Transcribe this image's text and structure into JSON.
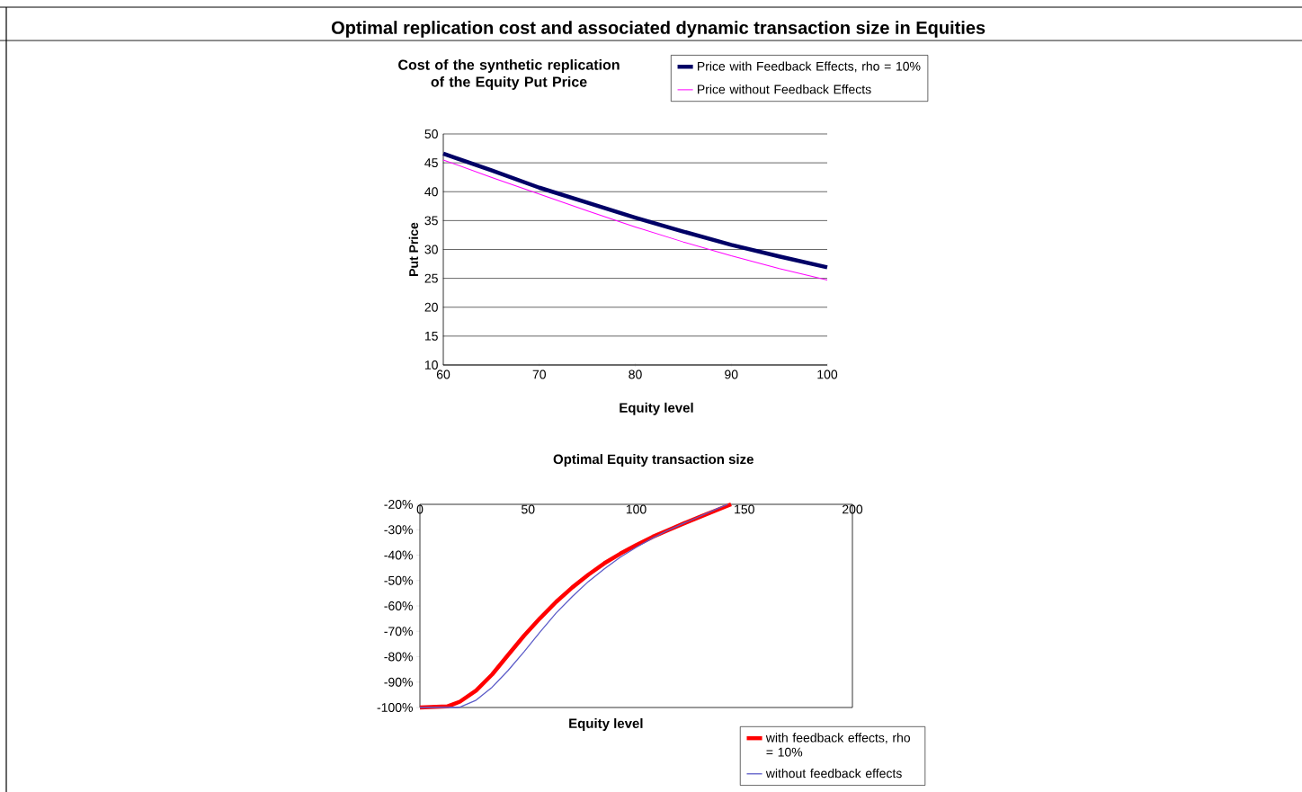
{
  "chart_data": [
    {
      "type": "line",
      "title": "Optimal replication cost and associated dynamic transaction size in Equities",
      "subtitle": "Cost of the synthetic replication of the Equity Put Price",
      "xlabel": "Equity level",
      "ylabel": "Put Price",
      "series": [
        {
          "name": "Price with Feedback Effects, rho = 10%",
          "color": "#000066",
          "x": [
            60,
            65,
            70,
            75,
            80,
            85,
            90,
            95,
            100
          ],
          "values": [
            46.6,
            43.7,
            40.7,
            38.1,
            35.5,
            33.1,
            30.8,
            28.8,
            26.9
          ]
        },
        {
          "name": "Price without Feedback Effects",
          "color": "#ff00ff",
          "x": [
            60,
            65,
            70,
            75,
            80,
            85,
            90,
            95,
            100
          ],
          "values": [
            45.5,
            42.5,
            39.6,
            36.7,
            33.9,
            31.3,
            28.9,
            26.7,
            24.7
          ]
        }
      ],
      "xlim": [
        60,
        100
      ],
      "xticks": [
        60,
        70,
        80,
        90,
        100
      ],
      "ylim": [
        10,
        50
      ],
      "yticks": [
        10,
        15,
        20,
        25,
        30,
        35,
        40,
        45,
        50
      ],
      "grid": "y",
      "legend": "top right"
    },
    {
      "type": "line",
      "title": "Optimal Equity transaction size",
      "xlabel": "Equity level",
      "series": [
        {
          "name": "with feedback effects, rho = 10%",
          "color": "#ff0000",
          "x": [
            0,
            12.6,
            18.5,
            26,
            33.4,
            40.8,
            48.2,
            55.6,
            63,
            70.5,
            77.9,
            85.3,
            92.7,
            100.1,
            107.6,
            115,
            122.4,
            129.8,
            137.2,
            143.9
          ],
          "values": [
            -100,
            -99.6,
            -97.7,
            -93.3,
            -87,
            -79.3,
            -71.7,
            -64.8,
            -58.4,
            -52.7,
            -47.7,
            -43.2,
            -39.4,
            -36,
            -32.8,
            -30.1,
            -27.4,
            -24.8,
            -22.3,
            -20
          ]
        },
        {
          "name": "without feedback effects",
          "color": "#5c5cc8",
          "x": [
            0,
            18.5,
            26,
            33.4,
            40.8,
            48.2,
            55.6,
            63,
            70.5,
            77.9,
            85.3,
            92.7,
            100.1,
            107.6,
            115,
            122.4,
            129.8,
            137.2,
            142.4
          ],
          "values": [
            -100,
            -99.9,
            -97.1,
            -92,
            -85.4,
            -78,
            -70.2,
            -62.8,
            -56.3,
            -50.4,
            -45.4,
            -40.8,
            -36.9,
            -33.3,
            -30.1,
            -27.3,
            -24.6,
            -21.8,
            -20
          ]
        }
      ],
      "xlim": [
        0,
        200
      ],
      "xticks": [
        0,
        50,
        100,
        150,
        200
      ],
      "ylim": [
        -100,
        -20
      ],
      "yticks": [
        {
          "value": -100,
          "label": "-100%"
        },
        {
          "value": -90,
          "label": "-90%"
        },
        {
          "value": -80,
          "label": "-80%"
        },
        {
          "value": -70,
          "label": "-70%"
        },
        {
          "value": -60,
          "label": "-60%"
        },
        {
          "value": -50,
          "label": "-50%"
        },
        {
          "value": -40,
          "label": "-40%"
        },
        {
          "value": -30,
          "label": "-30%"
        },
        {
          "value": -20,
          "label": "-20%"
        }
      ],
      "grid": false,
      "legend": "bottom right"
    }
  ]
}
